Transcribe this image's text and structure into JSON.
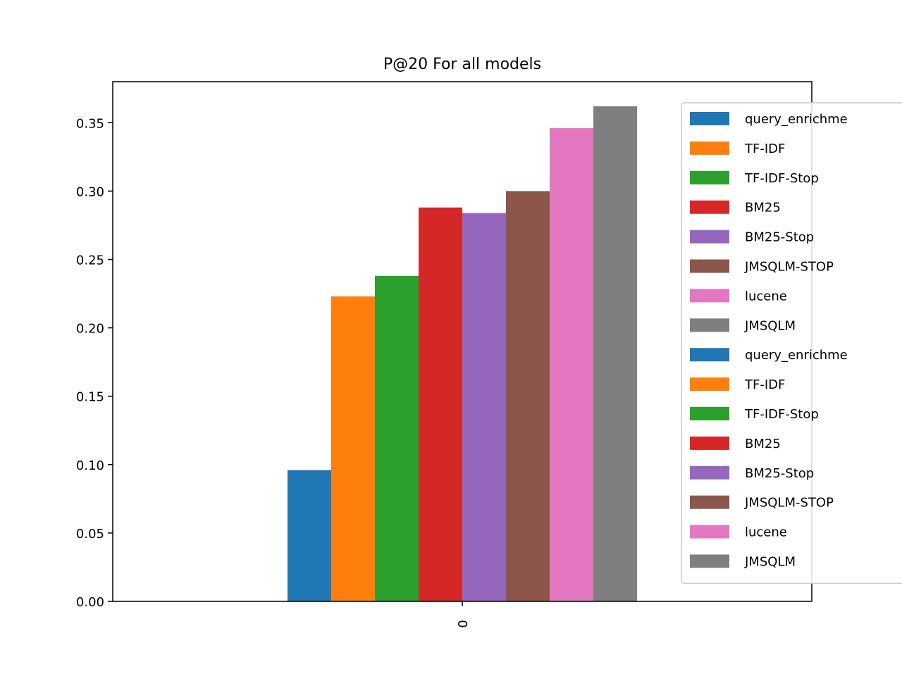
{
  "chart_data": {
    "type": "bar",
    "title": "P@20 For all models",
    "xlabel": "",
    "ylabel": "",
    "categories": [
      "0"
    ],
    "ylim": [
      0,
      0.38
    ],
    "yticks": [
      "0.00",
      "0.05",
      "0.10",
      "0.15",
      "0.20",
      "0.25",
      "0.30",
      "0.35"
    ],
    "grid": false,
    "legend_position": "right",
    "series": [
      {
        "name": "query_enrichme",
        "values": [
          0.096
        ],
        "color": "#1f77b4"
      },
      {
        "name": "TF-IDF",
        "values": [
          0.223
        ],
        "color": "#ff7f0e"
      },
      {
        "name": "TF-IDF-Stop",
        "values": [
          0.238
        ],
        "color": "#2ca02c"
      },
      {
        "name": "BM25",
        "values": [
          0.288
        ],
        "color": "#d62728"
      },
      {
        "name": "BM25-Stop",
        "values": [
          0.284
        ],
        "color": "#9467bd"
      },
      {
        "name": "JMSQLM-STOP",
        "values": [
          0.3
        ],
        "color": "#8c564b"
      },
      {
        "name": "lucene",
        "values": [
          0.346
        ],
        "color": "#e377c2"
      },
      {
        "name": "JMSQLM",
        "values": [
          0.362
        ],
        "color": "#7f7f7f"
      }
    ],
    "legend_entries": [
      {
        "name": "query_enrichme",
        "color": "#1f77b4"
      },
      {
        "name": "TF-IDF",
        "color": "#ff7f0e"
      },
      {
        "name": "TF-IDF-Stop",
        "color": "#2ca02c"
      },
      {
        "name": "BM25",
        "color": "#d62728"
      },
      {
        "name": "BM25-Stop",
        "color": "#9467bd"
      },
      {
        "name": "JMSQLM-STOP",
        "color": "#8c564b"
      },
      {
        "name": "lucene",
        "color": "#e377c2"
      },
      {
        "name": "JMSQLM",
        "color": "#7f7f7f"
      },
      {
        "name": "query_enrichme",
        "color": "#1f77b4"
      },
      {
        "name": "TF-IDF",
        "color": "#ff7f0e"
      },
      {
        "name": "TF-IDF-Stop",
        "color": "#2ca02c"
      },
      {
        "name": "BM25",
        "color": "#d62728"
      },
      {
        "name": "BM25-Stop",
        "color": "#9467bd"
      },
      {
        "name": "JMSQLM-STOP",
        "color": "#8c564b"
      },
      {
        "name": "lucene",
        "color": "#e377c2"
      },
      {
        "name": "JMSQLM",
        "color": "#7f7f7f"
      }
    ]
  }
}
